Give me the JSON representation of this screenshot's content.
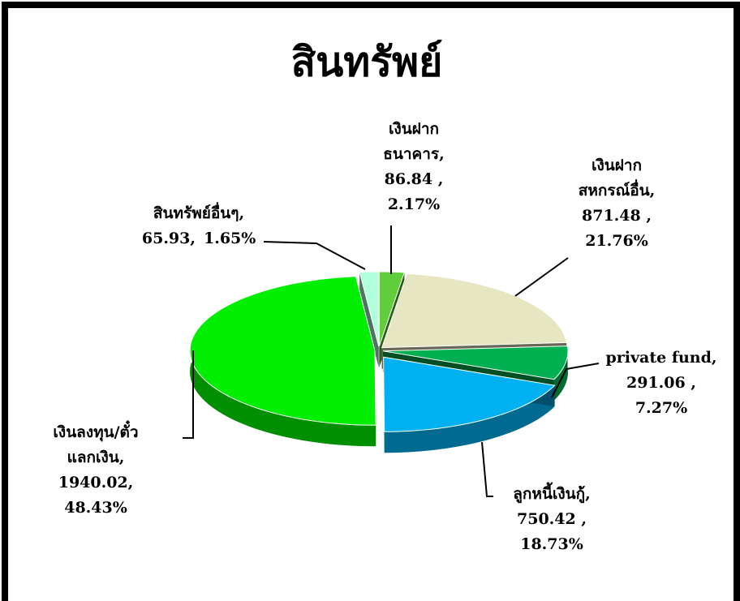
{
  "chart_data": {
    "type": "pie3d",
    "title": "สินทรัพย์",
    "categories": [
      "เงินฝาก\nธนาคาร,",
      "เงินฝาก\nสหกรณ์อื่น,",
      "private fund,",
      "ลูกหนี้เงินกู้,",
      "เงินลงทุน/ตั๋ว\nแลกเงิน,",
      "สินทรัพย์อื่นๆ,"
    ],
    "values": [
      86.84,
      871.48,
      291.06,
      750.42,
      1940.02,
      65.93
    ],
    "value_labels": [
      "86.84 ,",
      "871.48 ,",
      "291.06 ,",
      "750.42 ,",
      "1940.02,",
      "65.93,"
    ],
    "percent_labels": [
      "2.17%",
      "21.76%",
      "7.27%",
      "18.73%",
      "48.43%",
      "1.65%"
    ],
    "colors": [
      "#5fce3a",
      "#e6e6c2",
      "#00b050",
      "#00b0f0",
      "#00ee00",
      "#b0ffdc"
    ]
  }
}
